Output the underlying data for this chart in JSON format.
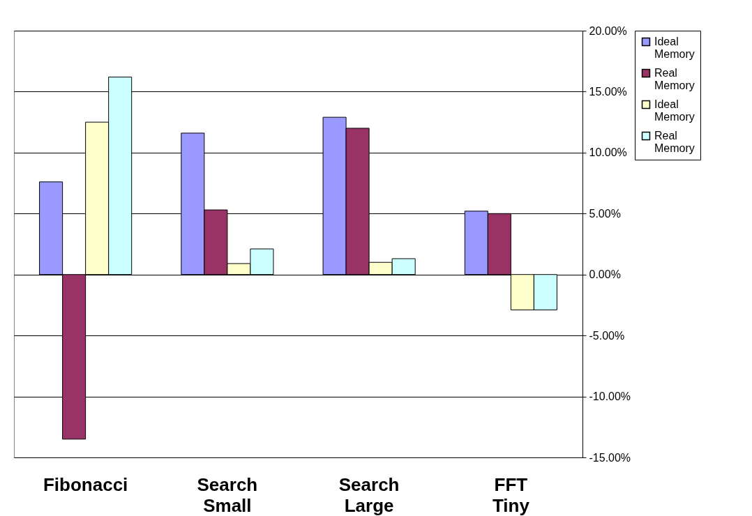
{
  "chart_data": {
    "type": "bar",
    "categories": [
      "Fibonacci",
      "Search Small",
      "Search Large",
      "FFT Tiny"
    ],
    "series": [
      {
        "name": "Ideal Memory",
        "color": "#9999ff",
        "values": [
          7.6,
          11.6,
          12.9,
          5.2
        ]
      },
      {
        "name": "Real Memory",
        "color": "#993366",
        "values": [
          -13.5,
          5.3,
          12.0,
          5.0
        ]
      },
      {
        "name": "Ideal Memory",
        "color": "#ffffcc",
        "values": [
          12.5,
          0.9,
          1.0,
          -2.9
        ]
      },
      {
        "name": "Real Memory",
        "color": "#ccffff",
        "values": [
          16.2,
          2.1,
          1.3,
          -2.9
        ]
      }
    ],
    "ylim": [
      -15,
      20
    ],
    "yticks": [
      {
        "value": -15,
        "label": "-15.00%"
      },
      {
        "value": -10,
        "label": "-10.00%"
      },
      {
        "value": -5,
        "label": "-5.00%"
      },
      {
        "value": 0,
        "label": "0.00%"
      },
      {
        "value": 5,
        "label": "5.00%"
      },
      {
        "value": 10,
        "label": "10.00%"
      },
      {
        "value": 15,
        "label": "15.00%"
      },
      {
        "value": 20,
        "label": "20.00%"
      }
    ],
    "grid": "y",
    "legend": "right"
  }
}
